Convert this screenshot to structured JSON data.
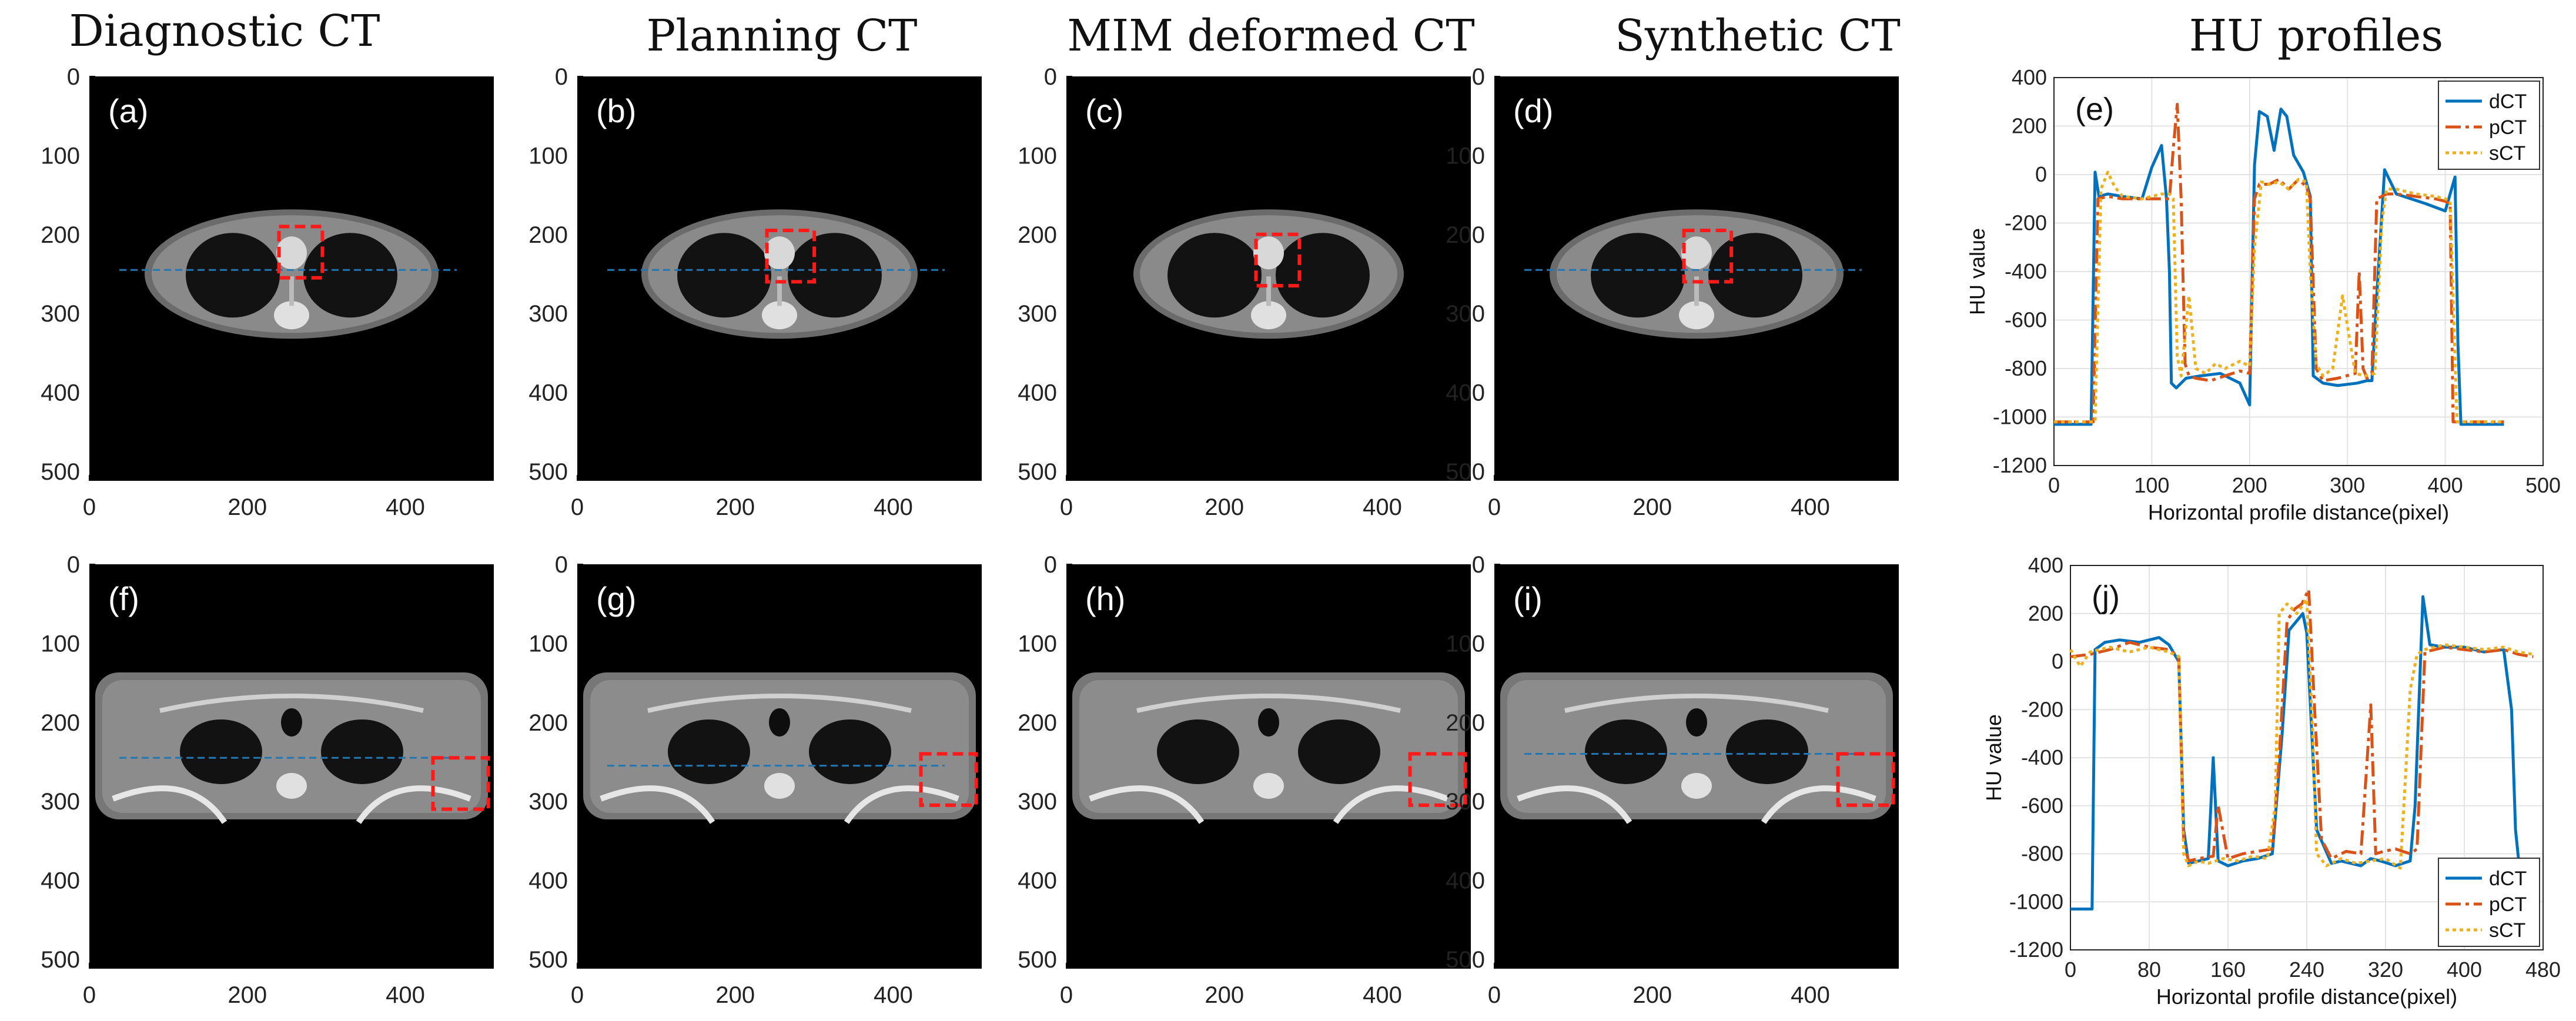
{
  "column_titles": [
    "Diagnostic CT",
    "Planning CT",
    "MIM deformed CT",
    "Synthetic CT",
    "HU profiles"
  ],
  "image_panels": [
    {
      "tag": "(a)",
      "row": 0,
      "col": 0
    },
    {
      "tag": "(b)",
      "row": 0,
      "col": 1
    },
    {
      "tag": "(c)",
      "row": 0,
      "col": 2
    },
    {
      "tag": "(d)",
      "row": 0,
      "col": 3
    },
    {
      "tag": "(f)",
      "row": 1,
      "col": 0
    },
    {
      "tag": "(g)",
      "row": 1,
      "col": 1
    },
    {
      "tag": "(h)",
      "row": 1,
      "col": 2
    },
    {
      "tag": "(i)",
      "row": 1,
      "col": 3
    }
  ],
  "image_axes": {
    "x_ticks": [
      0,
      200,
      400
    ],
    "y_ticks": [
      0,
      100,
      200,
      300,
      400,
      500
    ],
    "x_range": [
      0,
      512
    ],
    "y_range": [
      0,
      512
    ]
  },
  "colors": {
    "dCT": "#0072BD",
    "pCT": "#D95319",
    "sCT": "#EDB120",
    "roi_box": "#ff1a1a",
    "profile_line": "#1f77b4"
  },
  "chart_data": [
    {
      "type": "line",
      "tag": "(e)",
      "xlabel": "Horizontal profile distance(pixel)",
      "ylabel": "HU value",
      "xlim": [
        0,
        500
      ],
      "ylim": [
        -1200,
        400
      ],
      "x_ticks": [
        0,
        100,
        200,
        300,
        400,
        500
      ],
      "y_ticks": [
        400,
        200,
        0,
        -200,
        -400,
        -600,
        -800,
        -1000,
        -1200
      ],
      "grid": true,
      "legend": "top-right",
      "series": [
        {
          "name": "dCT",
          "x": [
            0,
            38,
            42,
            46,
            55,
            70,
            90,
            100,
            110,
            115,
            118,
            120,
            125,
            135,
            150,
            170,
            190,
            200,
            205,
            210,
            218,
            225,
            232,
            238,
            245,
            255,
            262,
            265,
            275,
            290,
            310,
            320,
            325,
            330,
            338,
            350,
            380,
            400,
            410,
            413,
            416,
            420,
            460
          ],
          "y": [
            -1030,
            -1030,
            10,
            -90,
            -80,
            -90,
            -100,
            30,
            120,
            -100,
            -400,
            -860,
            -880,
            -840,
            -830,
            -820,
            -860,
            -950,
            40,
            260,
            240,
            100,
            270,
            240,
            80,
            10,
            -90,
            -830,
            -860,
            -870,
            -860,
            -850,
            -850,
            -500,
            20,
            -80,
            -120,
            -150,
            -10,
            -700,
            -1030,
            -1030,
            -1030
          ]
        },
        {
          "name": "pCT",
          "x": [
            0,
            40,
            45,
            55,
            70,
            90,
            110,
            118,
            122,
            126,
            130,
            134,
            138,
            145,
            160,
            175,
            190,
            200,
            205,
            210,
            220,
            230,
            240,
            250,
            258,
            262,
            268,
            275,
            290,
            308,
            312,
            316,
            320,
            325,
            330,
            340,
            350,
            370,
            390,
            400,
            405,
            408,
            412,
            460
          ],
          "y": [
            -1020,
            -1020,
            -100,
            -90,
            -100,
            -100,
            -100,
            -100,
            110,
            290,
            -100,
            -780,
            -830,
            -840,
            -850,
            -830,
            -810,
            -820,
            -100,
            -40,
            -40,
            -20,
            -60,
            -20,
            -50,
            -100,
            -800,
            -850,
            -840,
            -820,
            -400,
            -800,
            -840,
            -820,
            -100,
            -80,
            -80,
            -90,
            -100,
            -110,
            -120,
            -1020,
            -1020,
            -1020
          ]
        },
        {
          "name": "sCT",
          "x": [
            0,
            42,
            48,
            55,
            62,
            70,
            90,
            110,
            118,
            122,
            126,
            130,
            138,
            145,
            155,
            165,
            175,
            190,
            200,
            205,
            212,
            220,
            230,
            240,
            250,
            258,
            262,
            268,
            275,
            285,
            295,
            308,
            318,
            328,
            335,
            340,
            350,
            370,
            390,
            400,
            405,
            412,
            460
          ],
          "y": [
            -1020,
            -1020,
            -60,
            10,
            -50,
            -90,
            -100,
            -80,
            -80,
            -100,
            -750,
            -830,
            -500,
            -800,
            -820,
            -780,
            -800,
            -770,
            -790,
            -300,
            -30,
            -40,
            -30,
            -60,
            -20,
            -30,
            -400,
            -780,
            -830,
            -800,
            -500,
            -820,
            -830,
            -820,
            -200,
            -60,
            -60,
            -80,
            -90,
            -100,
            -110,
            -1020,
            -1020
          ]
        }
      ]
    },
    {
      "type": "line",
      "tag": "(j)",
      "xlabel": "Horizontal profile distance(pixel)",
      "ylabel": "HU value",
      "xlim": [
        0,
        480
      ],
      "ylim": [
        -1200,
        400
      ],
      "x_ticks": [
        0,
        80,
        160,
        240,
        320,
        400,
        480
      ],
      "y_ticks": [
        400,
        200,
        0,
        -200,
        -400,
        -600,
        -800,
        -1000,
        -1200
      ],
      "grid": true,
      "legend": "bottom-right",
      "series": [
        {
          "name": "dCT",
          "x": [
            0,
            22,
            25,
            35,
            50,
            70,
            90,
            100,
            110,
            115,
            120,
            130,
            140,
            145,
            150,
            160,
            175,
            190,
            205,
            215,
            222,
            230,
            236,
            240,
            250,
            265,
            275,
            295,
            305,
            315,
            330,
            345,
            350,
            358,
            365,
            380,
            400,
            420,
            440,
            448,
            452,
            456
          ],
          "y": [
            -1030,
            -1030,
            50,
            80,
            90,
            80,
            100,
            70,
            0,
            -700,
            -840,
            -830,
            -820,
            -400,
            -830,
            -850,
            -830,
            -820,
            -800,
            -300,
            130,
            170,
            200,
            120,
            -700,
            -840,
            -830,
            -850,
            -820,
            -830,
            -850,
            -830,
            -600,
            270,
            70,
            60,
            60,
            40,
            50,
            -200,
            -700,
            -860
          ]
        },
        {
          "name": "pCT",
          "x": [
            0,
            20,
            40,
            60,
            80,
            100,
            110,
            115,
            120,
            130,
            145,
            150,
            160,
            175,
            190,
            205,
            212,
            220,
            228,
            235,
            242,
            248,
            255,
            265,
            280,
            295,
            305,
            310,
            318,
            330,
            345,
            352,
            360,
            380,
            400,
            420,
            440,
            455,
            470
          ],
          "y": [
            20,
            30,
            50,
            80,
            60,
            50,
            20,
            -750,
            -830,
            -820,
            -810,
            -600,
            -820,
            -800,
            -790,
            -780,
            -400,
            170,
            220,
            240,
            300,
            -200,
            -740,
            -820,
            -790,
            -800,
            -180,
            -800,
            -790,
            -780,
            -800,
            -780,
            40,
            60,
            50,
            40,
            50,
            30,
            20
          ]
        },
        {
          "name": "sCT",
          "x": [
            0,
            10,
            20,
            40,
            60,
            80,
            100,
            110,
            115,
            120,
            130,
            140,
            155,
            170,
            185,
            200,
            208,
            212,
            220,
            230,
            240,
            246,
            250,
            260,
            275,
            290,
            305,
            320,
            335,
            340,
            345,
            352,
            360,
            380,
            400,
            420,
            440,
            455,
            470
          ],
          "y": [
            50,
            -20,
            40,
            60,
            40,
            60,
            40,
            20,
            -800,
            -850,
            -830,
            -840,
            -820,
            -830,
            -810,
            -820,
            -600,
            200,
            240,
            200,
            260,
            -300,
            -800,
            -850,
            -820,
            -840,
            -830,
            -820,
            -860,
            -500,
            -120,
            30,
            50,
            70,
            60,
            50,
            60,
            40,
            30
          ]
        }
      ]
    }
  ]
}
